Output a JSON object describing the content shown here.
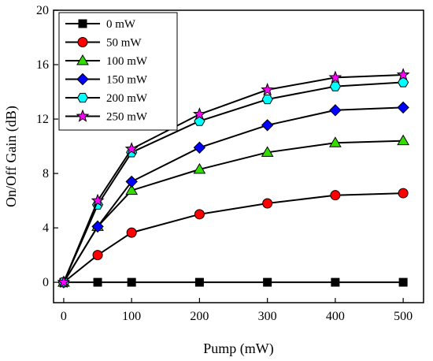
{
  "chart_data": {
    "type": "line",
    "title": "",
    "xlabel": "Pump (mW)",
    "ylabel": "On/Off Gain (dB)",
    "xlim": [
      -15,
      530
    ],
    "ylim": [
      -1.5,
      20
    ],
    "xticks": [
      0,
      100,
      200,
      300,
      400,
      500
    ],
    "yticks": [
      0,
      4,
      8,
      12,
      16,
      20
    ],
    "grid": false,
    "legend_position": "top-left",
    "x": [
      0,
      50,
      100,
      200,
      300,
      400,
      500
    ],
    "series": [
      {
        "name": "0 mW",
        "marker": "square",
        "color": "#000000",
        "values": [
          0,
          0,
          0,
          0,
          0,
          0,
          0
        ]
      },
      {
        "name": "50 mW",
        "marker": "circle",
        "color": "#ff0000",
        "values": [
          0,
          2.0,
          3.65,
          5.0,
          5.8,
          6.4,
          6.55
        ]
      },
      {
        "name": "100 mW",
        "marker": "triangle",
        "color": "#33dd00",
        "values": [
          0,
          4.1,
          6.75,
          8.3,
          9.55,
          10.25,
          10.4
        ]
      },
      {
        "name": "150 mW",
        "marker": "diamond",
        "color": "#0000ff",
        "values": [
          0,
          4.1,
          7.4,
          9.9,
          11.55,
          12.65,
          12.85
        ]
      },
      {
        "name": "200 mW",
        "marker": "hexagon",
        "color": "#00ffff",
        "values": [
          0,
          5.7,
          9.55,
          11.85,
          13.45,
          14.4,
          14.7
        ]
      },
      {
        "name": "250 mW",
        "marker": "star",
        "color": "#ff00ff",
        "values": [
          0,
          6.0,
          9.8,
          12.35,
          14.15,
          15.05,
          15.25
        ]
      }
    ]
  }
}
